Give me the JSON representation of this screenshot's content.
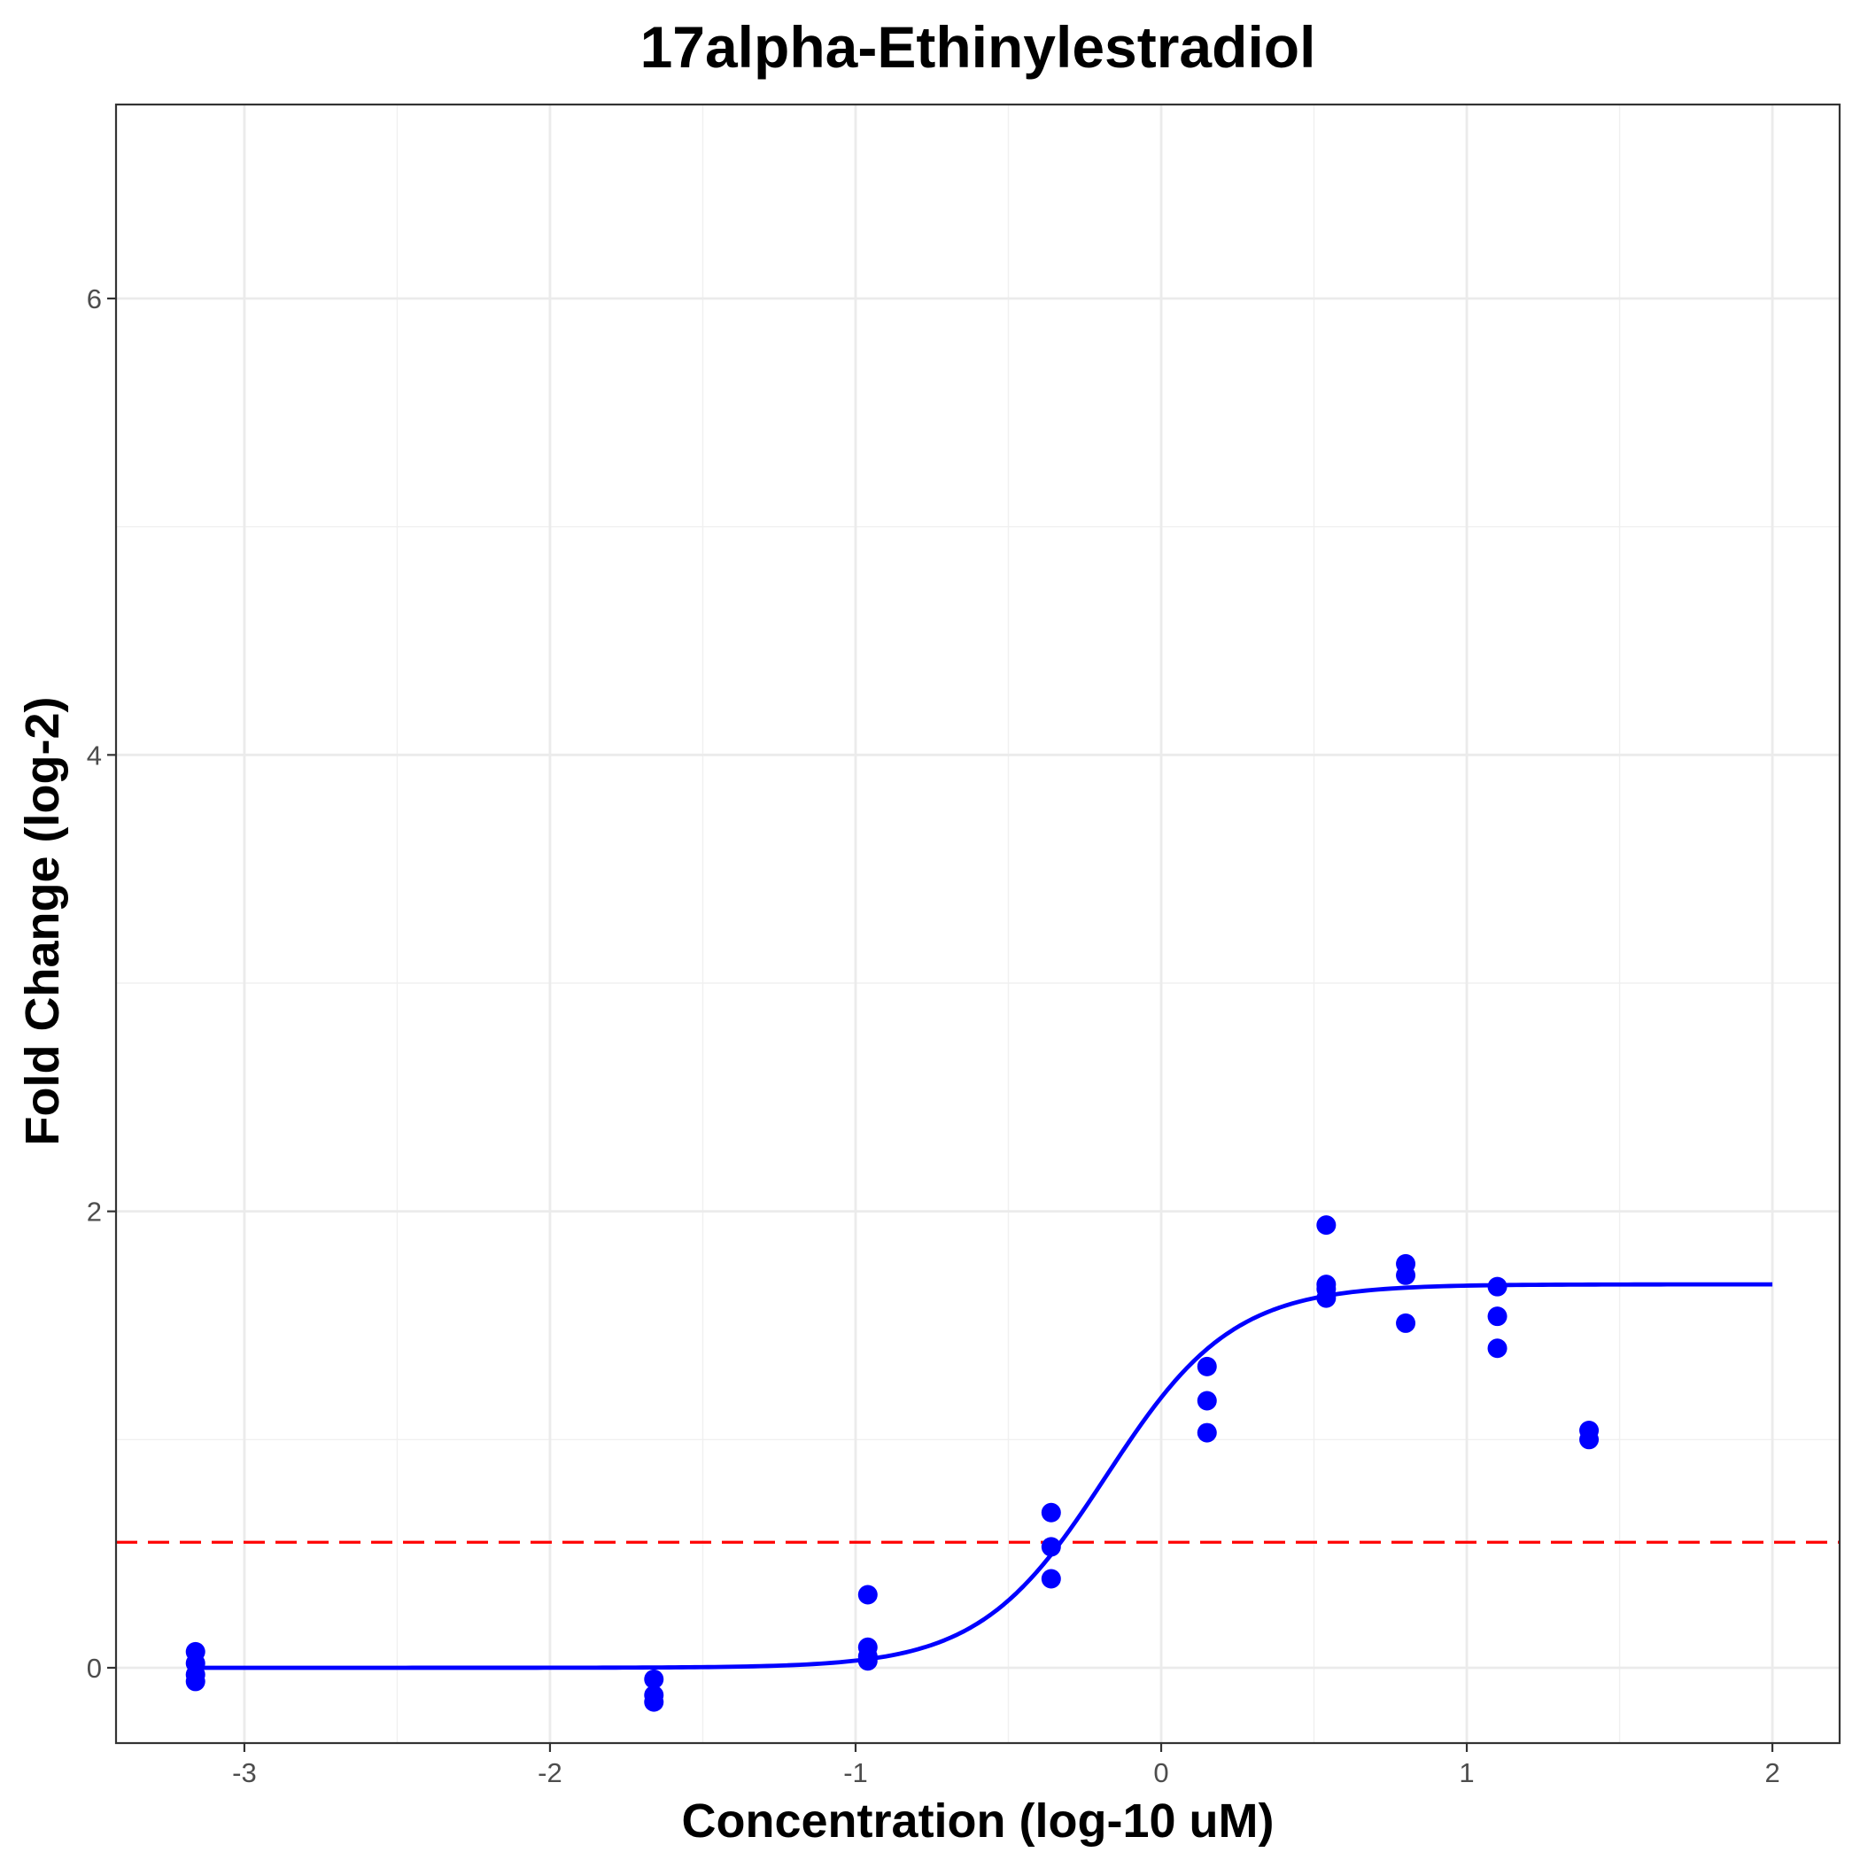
{
  "chart_data": {
    "type": "scatter",
    "title": "17alpha-Ethinylestradiol",
    "xlabel": "Concentration (log-10 uM)",
    "ylabel": "Fold Change (log-2)",
    "xlim": [
      -3.42,
      2.22
    ],
    "ylim": [
      -0.33,
      6.85
    ],
    "xticks": [
      -3,
      -2,
      -1,
      0,
      1,
      2
    ],
    "xtick_labels": [
      "-3",
      "-2",
      "-1",
      "0",
      "1",
      "2"
    ],
    "yticks": [
      0,
      2,
      4,
      6
    ],
    "ytick_labels": [
      "0",
      "2",
      "4",
      "6"
    ],
    "grid": true,
    "legend": "none",
    "threshold_line": {
      "y": 0.55,
      "style": "dashed",
      "color": "#ff0000"
    },
    "points": {
      "color": "#0000ff",
      "x": [
        -3.16,
        -3.16,
        -3.16,
        -3.16,
        -1.66,
        -1.66,
        -1.66,
        -0.96,
        -0.96,
        -0.96,
        -0.96,
        -0.36,
        -0.36,
        -0.36,
        0.15,
        0.15,
        0.15,
        0.54,
        0.54,
        0.54,
        0.54,
        0.8,
        0.8,
        0.8,
        1.1,
        1.1,
        1.1,
        1.4,
        1.4
      ],
      "y": [
        0.07,
        0.02,
        -0.03,
        -0.06,
        -0.05,
        -0.12,
        -0.15,
        0.32,
        0.09,
        0.05,
        0.03,
        0.68,
        0.53,
        0.39,
        1.32,
        1.17,
        1.03,
        1.94,
        1.68,
        1.66,
        1.62,
        1.77,
        1.72,
        1.51,
        1.67,
        1.54,
        1.4,
        1.04,
        1.0
      ]
    },
    "fit_curve": {
      "color": "#0000ff",
      "bottom": 0.0,
      "top": 1.68,
      "ec50_log": -0.18,
      "hill": 2.1,
      "x_range": [
        -3.16,
        2.0
      ]
    }
  }
}
